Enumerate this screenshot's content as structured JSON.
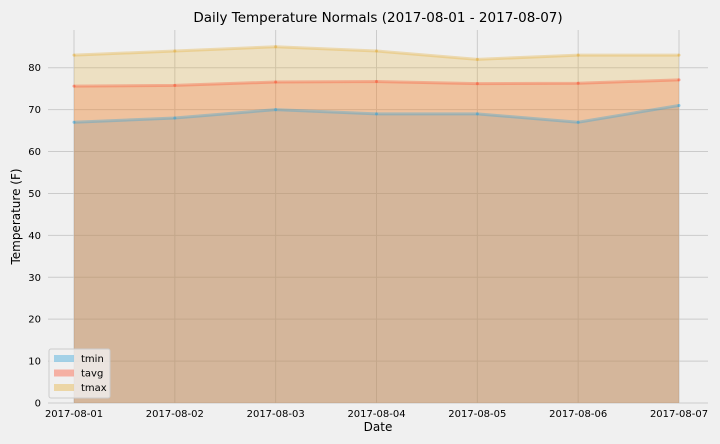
{
  "chart_data": {
    "type": "area",
    "title": "Daily Temperature Normals (2017-08-01 - 2017-08-07)",
    "xlabel": "Date",
    "ylabel": "Temperature (F)",
    "categories": [
      "2017-08-01",
      "2017-08-02",
      "2017-08-03",
      "2017-08-04",
      "2017-08-05",
      "2017-08-06",
      "2017-08-07"
    ],
    "ylim": [
      0,
      89
    ],
    "yticks": [
      0,
      10,
      20,
      30,
      40,
      50,
      60,
      70,
      80
    ],
    "grid": true,
    "stacked": false,
    "legend_position": "lower-left",
    "series": [
      {
        "name": "tmin",
        "values": [
          67,
          68,
          70,
          69,
          69,
          67,
          71
        ],
        "color": "#30a2da"
      },
      {
        "name": "tavg",
        "values": [
          75.6,
          75.8,
          76.6,
          76.7,
          76.2,
          76.3,
          77.1
        ],
        "color": "#fc4f30"
      },
      {
        "name": "tmax",
        "values": [
          83,
          84,
          85,
          84,
          82,
          83,
          83
        ],
        "color": "#e5ae38"
      }
    ]
  }
}
